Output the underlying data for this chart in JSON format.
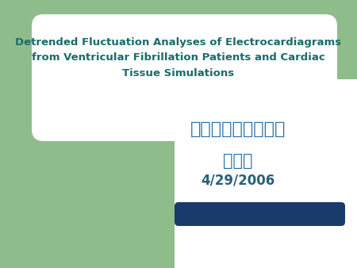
{
  "bg_color": "#ffffff",
  "green_color": "#8fbc8b",
  "title_line1": "Detrended Fluctuation Analyses of Electrocardiagrams",
  "title_line2": "from Ventricular Fibrillation Patients and Cardiac",
  "title_line3": "Tissue Simulations",
  "title_color": "#1a6b6b",
  "institution": "國立東華大學物理系",
  "institution_color": "#2a6fa8",
  "author": "薕又新",
  "author_color": "#2a6fa8",
  "date": "4/29/2006",
  "date_color": "#2a5f7a",
  "bar_color": "#1a3a6b",
  "title_fontsize": 9.5,
  "chinese_inst_fontsize": 16,
  "chinese_author_fontsize": 15,
  "date_fontsize": 12
}
